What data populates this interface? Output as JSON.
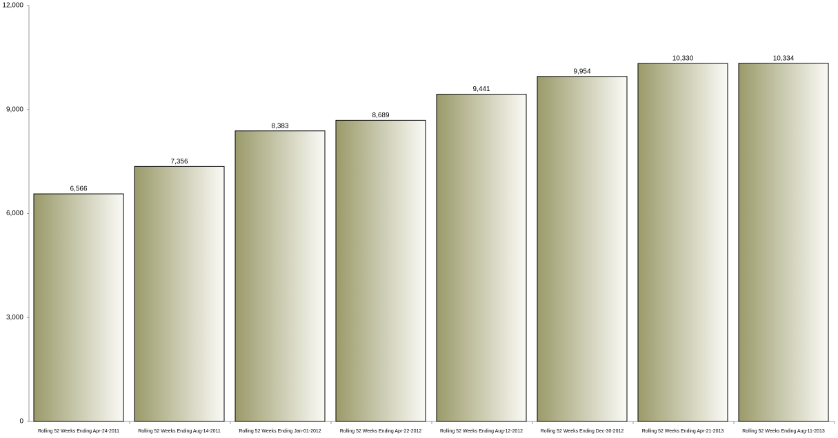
{
  "chart_data": {
    "type": "bar",
    "categories": [
      "Rolling 52 Weeks Ending Apr-24-2011",
      "Rolling 52 Weeks Ending Aug-14-2011",
      "Rolling 52 Weeks Ending Jan-01-2012",
      "Rolling 52 Weeks Ending Apr-22-2012",
      "Rolling 52 Weeks Ending Aug-12-2012",
      "Rolling 52 Weeks Ending Dec-30-2012",
      "Rolling 52 Weeks Ending Apr-21-2013",
      "Rolling 52 Weeks Ending Aug-11-2013"
    ],
    "values": [
      6566,
      7356,
      8383,
      8689,
      9441,
      9954,
      10330,
      10334
    ],
    "value_labels": [
      "6,566",
      "7,356",
      "8,383",
      "8,689",
      "9,441",
      "9,954",
      "10,330",
      "10,334"
    ],
    "color": "#9a9a6a",
    "ylim": [
      0,
      12000
    ],
    "yticks": [
      0,
      {
        "value": 3000,
        "label": "3,000"
      },
      {
        "value": 6000,
        "label": "6,000"
      },
      {
        "value": 9000,
        "label": "9,000"
      },
      {
        "value": 12000,
        "label": "12,000"
      }
    ]
  }
}
